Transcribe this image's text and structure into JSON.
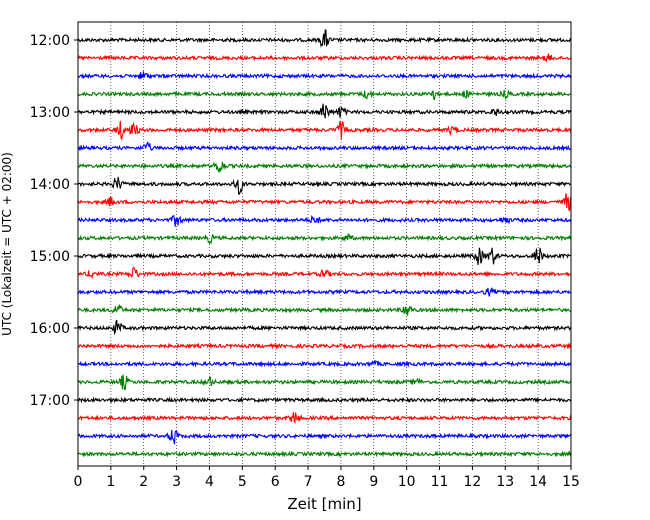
{
  "chart_data": {
    "type": "line",
    "title": "",
    "xlabel": "Zeit  [min]",
    "ylabel": "UTC (Lokalzeit = UTC + 02:00)",
    "xlim": [
      0,
      15
    ],
    "x_ticks": [
      0,
      1,
      2,
      3,
      4,
      5,
      6,
      7,
      8,
      9,
      10,
      11,
      12,
      13,
      14,
      15
    ],
    "y_ticks": [
      {
        "label": "12:00",
        "row": 0
      },
      {
        "label": "13:00",
        "row": 4
      },
      {
        "label": "14:00",
        "row": 8
      },
      {
        "label": "15:00",
        "row": 12
      },
      {
        "label": "16:00",
        "row": 16
      },
      {
        "label": "17:00",
        "row": 20
      }
    ],
    "grid": "vertical dotted",
    "row_minutes": 15,
    "rows": 24,
    "colors": [
      "#000000",
      "#ff0000",
      "#0000ff",
      "#008000"
    ],
    "series": [
      {
        "start": "12:00",
        "events": [
          [
            7.5,
            10
          ]
        ]
      },
      {
        "start": "12:15",
        "events": [
          [
            14.3,
            3
          ]
        ]
      },
      {
        "start": "12:30",
        "events": [
          [
            2.0,
            4
          ]
        ]
      },
      {
        "start": "12:45",
        "events": [
          [
            8.8,
            4
          ],
          [
            10.8,
            5
          ],
          [
            11.8,
            3
          ],
          [
            13.0,
            3
          ]
        ]
      },
      {
        "start": "13:00",
        "events": [
          [
            7.5,
            9
          ],
          [
            8.0,
            5
          ],
          [
            12.7,
            3
          ]
        ]
      },
      {
        "start": "13:15",
        "events": [
          [
            1.3,
            8
          ],
          [
            1.7,
            6
          ],
          [
            8.0,
            8
          ],
          [
            11.4,
            4
          ]
        ]
      },
      {
        "start": "13:30",
        "events": [
          [
            2.1,
            5
          ]
        ]
      },
      {
        "start": "13:45",
        "events": [
          [
            4.3,
            8
          ]
        ]
      },
      {
        "start": "14:00",
        "events": [
          [
            1.2,
            7
          ],
          [
            4.9,
            9
          ]
        ]
      },
      {
        "start": "14:15",
        "events": [
          [
            1.0,
            4
          ],
          [
            14.9,
            9
          ]
        ]
      },
      {
        "start": "14:30",
        "events": [
          [
            3.0,
            6
          ],
          [
            7.2,
            4
          ],
          [
            13.0,
            3
          ]
        ]
      },
      {
        "start": "14:45",
        "events": [
          [
            4.0,
            4
          ],
          [
            8.2,
            3
          ]
        ]
      },
      {
        "start": "15:00",
        "events": [
          [
            12.2,
            8
          ],
          [
            12.6,
            8
          ],
          [
            14.0,
            9
          ]
        ]
      },
      {
        "start": "15:15",
        "events": [
          [
            0.4,
            3
          ],
          [
            1.7,
            6
          ],
          [
            7.5,
            4
          ]
        ]
      },
      {
        "start": "15:30",
        "events": [
          [
            12.5,
            3
          ]
        ]
      },
      {
        "start": "15:45",
        "events": [
          [
            1.2,
            5
          ],
          [
            10.0,
            7
          ]
        ]
      },
      {
        "start": "16:00",
        "events": [
          [
            1.2,
            7
          ]
        ]
      },
      {
        "start": "16:15",
        "events": []
      },
      {
        "start": "16:30",
        "events": [
          [
            9.0,
            2
          ]
        ]
      },
      {
        "start": "16:45",
        "events": [
          [
            1.4,
            7
          ],
          [
            4.0,
            4
          ],
          [
            10.3,
            3
          ]
        ]
      },
      {
        "start": "17:00",
        "events": []
      },
      {
        "start": "17:15",
        "events": [
          [
            6.6,
            6
          ]
        ]
      },
      {
        "start": "17:30",
        "events": [
          [
            2.9,
            8
          ]
        ]
      },
      {
        "start": "17:45",
        "events": []
      }
    ]
  }
}
